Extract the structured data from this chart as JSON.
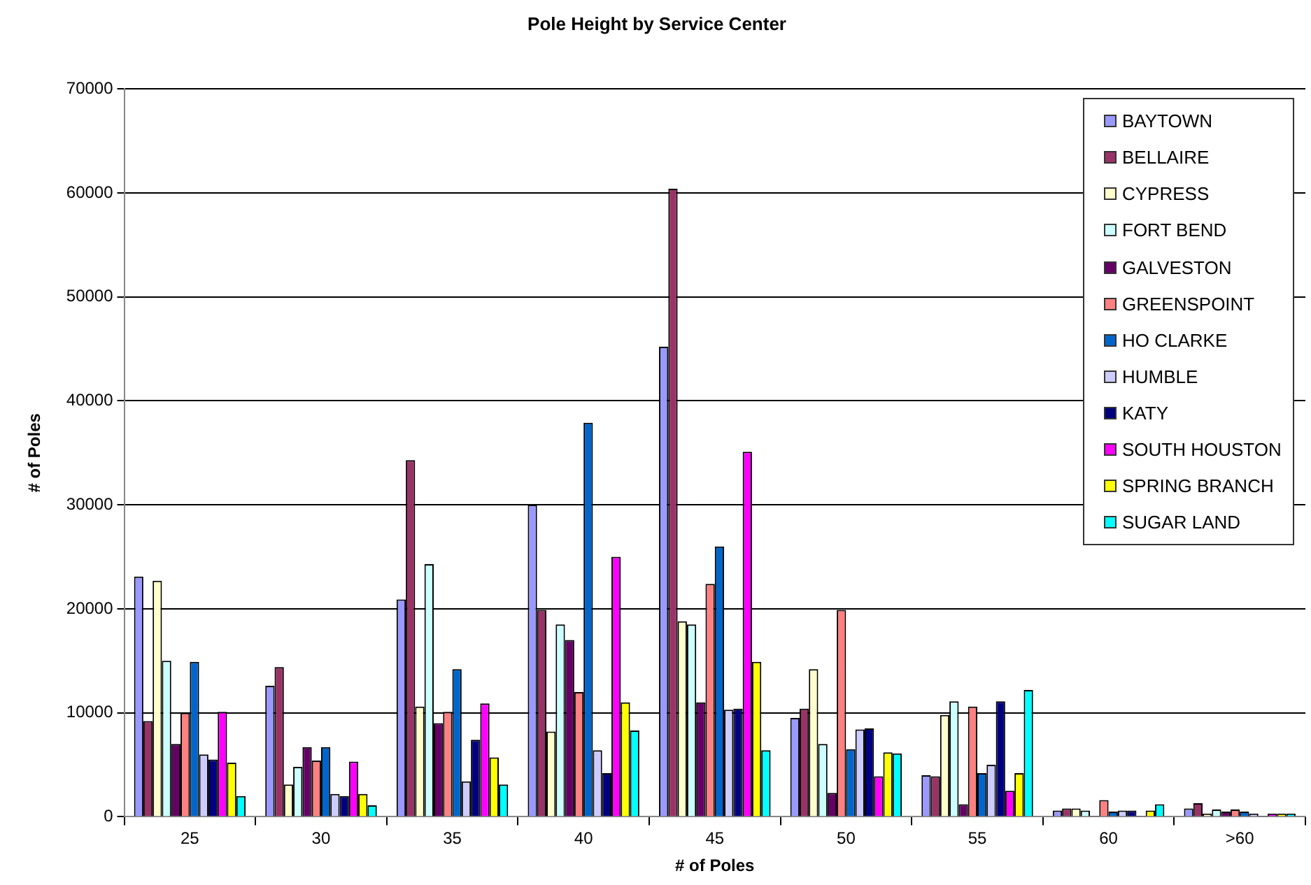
{
  "chart_data": {
    "type": "bar",
    "title": "Pole Height by Service Center",
    "xlabel": "# of Poles",
    "ylabel": "# of Poles",
    "categories": [
      "25",
      "30",
      "35",
      "40",
      "45",
      "50",
      "55",
      "60",
      ">60"
    ],
    "ylim": [
      0,
      70000
    ],
    "yticks": [
      0,
      10000,
      20000,
      30000,
      40000,
      50000,
      60000,
      70000
    ],
    "grid": "y",
    "legend": "top right",
    "series": [
      {
        "name": "BAYTOWN",
        "color": "#9999ff",
        "values": [
          23100,
          12600,
          20900,
          30000,
          45200,
          9500,
          4000,
          600,
          800
        ]
      },
      {
        "name": "BELLAIRE",
        "color": "#993366",
        "values": [
          9200,
          14400,
          34300,
          19900,
          60400,
          10400,
          3900,
          800,
          1300
        ]
      },
      {
        "name": "CYPRESS",
        "color": "#ffffcc",
        "values": [
          22700,
          3100,
          10600,
          8200,
          18800,
          14200,
          9800,
          800,
          300
        ]
      },
      {
        "name": "FORT BEND",
        "color": "#ccffff",
        "values": [
          15000,
          4800,
          24300,
          18500,
          18500,
          7000,
          11100,
          600,
          700
        ]
      },
      {
        "name": "GALVESTON",
        "color": "#660066",
        "values": [
          7000,
          6700,
          9000,
          17000,
          11000,
          2300,
          1200,
          100,
          500
        ]
      },
      {
        "name": "GREENSPOINT",
        "color": "#ff8080",
        "values": [
          10000,
          5400,
          10100,
          12000,
          22400,
          19900,
          10600,
          1600,
          700
        ]
      },
      {
        "name": "HO CLARKE",
        "color": "#0066cc",
        "values": [
          14900,
          6700,
          14200,
          37900,
          26000,
          6500,
          4200,
          500,
          500
        ]
      },
      {
        "name": "HUMBLE",
        "color": "#ccccff",
        "values": [
          6000,
          2200,
          3400,
          6400,
          10300,
          8400,
          5000,
          600,
          300
        ]
      },
      {
        "name": "KATY",
        "color": "#000080",
        "values": [
          5500,
          2000,
          7400,
          4200,
          10400,
          8500,
          11100,
          600,
          100
        ]
      },
      {
        "name": "SOUTH HOUSTON",
        "color": "#ff00ff",
        "values": [
          10100,
          5300,
          10900,
          25000,
          35100,
          3900,
          2500,
          100,
          300
        ]
      },
      {
        "name": "SPRING BRANCH",
        "color": "#ffff00",
        "values": [
          5200,
          2200,
          5700,
          11000,
          14900,
          6200,
          4200,
          600,
          300
        ]
      },
      {
        "name": "SUGAR LAND",
        "color": "#00ffff",
        "values": [
          2000,
          1100,
          3100,
          8300,
          6400,
          6100,
          12200,
          1200,
          300
        ]
      }
    ]
  }
}
